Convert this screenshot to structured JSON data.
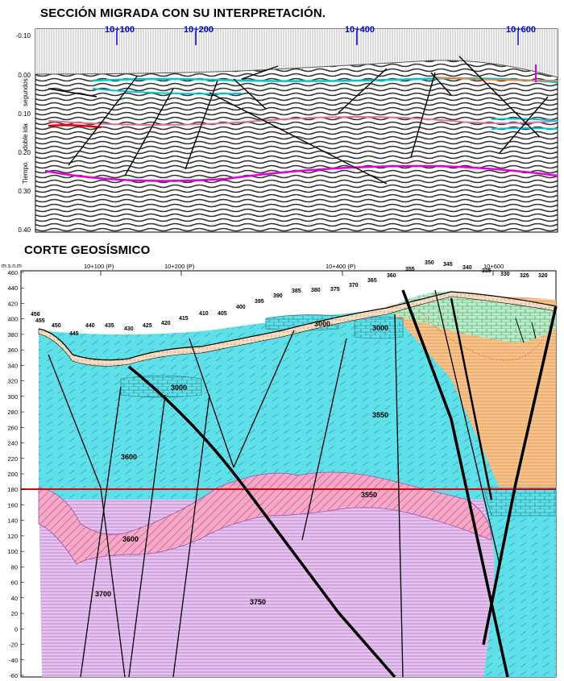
{
  "seismic": {
    "title": "SECCIÓN MIGRADA CON SU INTERPRETACIÓN.",
    "axis_label_parts": [
      "segundos",
      "doble ida",
      "Tiempo"
    ],
    "y_ticks": [
      "-0.10",
      "0.00",
      "0.10",
      "0.20",
      "0.30",
      "0.40"
    ],
    "stations": [
      "10+100",
      "10+200",
      "10+400",
      "10+600"
    ]
  },
  "geo": {
    "title": "CORTE GEOSÍSMICO",
    "unit": "m.s.n.m",
    "y_ticks": [
      "460",
      "440",
      "420",
      "400",
      "380",
      "360",
      "340",
      "320",
      "300",
      "280",
      "260",
      "240",
      "220",
      "200",
      "180",
      "160",
      "140",
      "120",
      "100",
      "80",
      "60",
      "40",
      "20",
      "0",
      "-20",
      "-40",
      "-60"
    ],
    "stations": [
      "10+100 (P)",
      "10+200 (P)",
      "10+400 (P)",
      "10+600"
    ],
    "surface_labels": [
      "456",
      "455",
      "450",
      "445",
      "440",
      "435",
      "430",
      "425",
      "420",
      "415",
      "410",
      "405",
      "400",
      "395",
      "390",
      "385",
      "380",
      "375",
      "370",
      "365",
      "360",
      "355",
      "350",
      "345",
      "340",
      "335",
      "330",
      "325",
      "320"
    ],
    "velocity_labels": [
      "3000",
      "3000",
      "3000",
      "3550",
      "3600",
      "3550",
      "3600",
      "3700",
      "3750"
    ],
    "reference_level": "180"
  },
  "colors": {
    "cyan": "#5fe0e8",
    "orange": "#f7c48c",
    "pink": "#f4a9c8",
    "purple": "#e6c4ef",
    "green": "#b9ecc8",
    "magenta": "#e000e0",
    "red": "#e00000",
    "blue_label": "#0000cc"
  }
}
